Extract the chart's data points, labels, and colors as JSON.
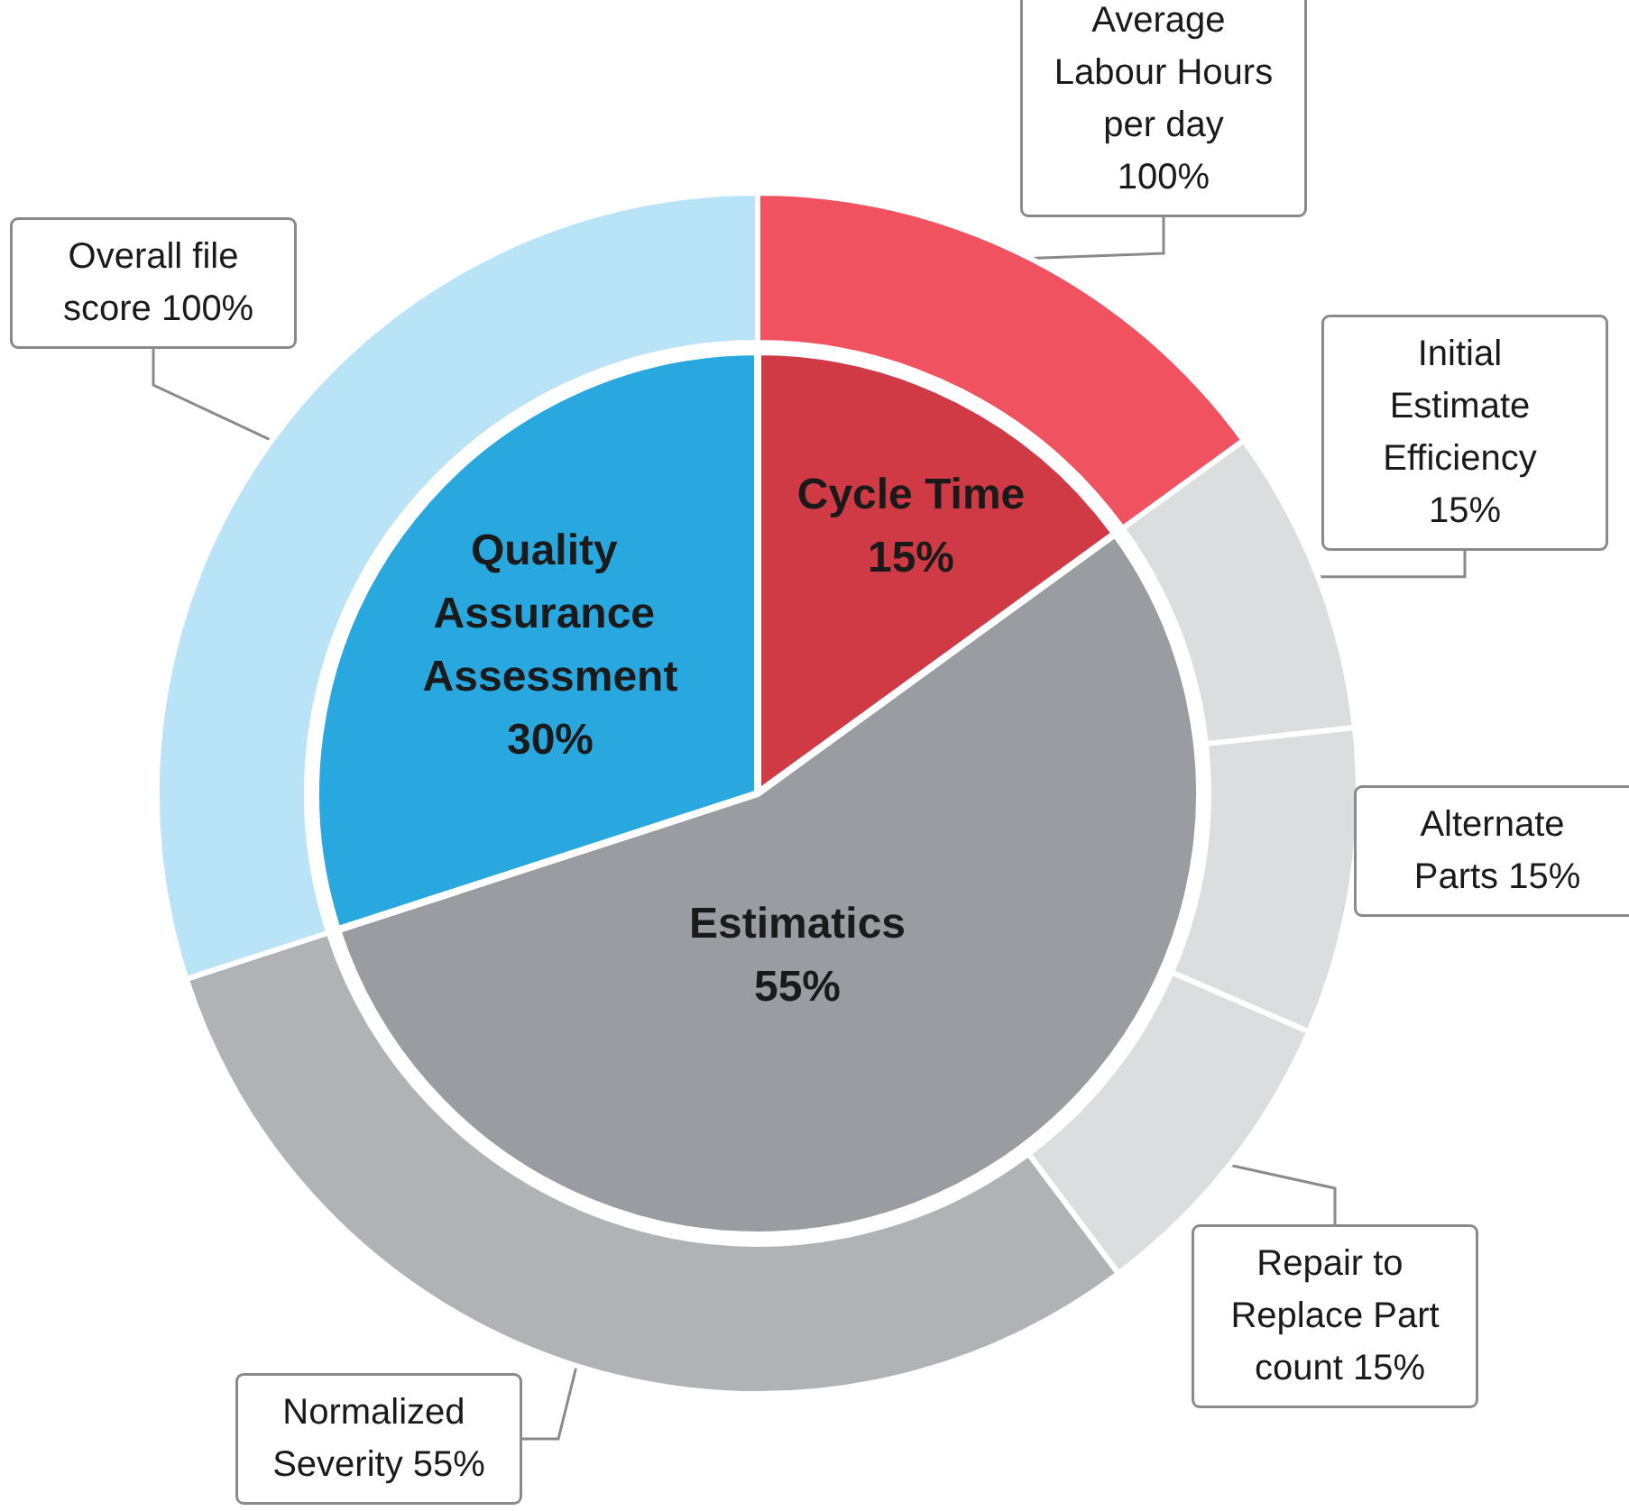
{
  "chart_data": [
    {
      "type": "pie",
      "categories": [
        "Cycle Time",
        "Estimatics",
        "Quality Assurance Assessment"
      ],
      "values": [
        15,
        55,
        30
      ],
      "colors": [
        "#cf3a45",
        "#9a9ca1",
        "#29a8e0"
      ],
      "value_labels": [
        "15%",
        "55%",
        "30%"
      ]
    },
    {
      "type": "donut",
      "categories": [
        "Average Labour Hours per day 100%",
        "Initial Estimate Efficiency 15%",
        "Alternate Parts 15%",
        "Repair to Replace Part count 15%",
        "Normalized Severity 55%",
        "Overall file score 100%"
      ],
      "values": [
        15,
        8.25,
        8.25,
        8.25,
        30.25,
        30
      ],
      "colors": [
        "#f0525f",
        "#dcdddf",
        "#dcdddf",
        "#dcdddf",
        "#b0b2b6",
        "#b9e3f6"
      ]
    }
  ]
}
